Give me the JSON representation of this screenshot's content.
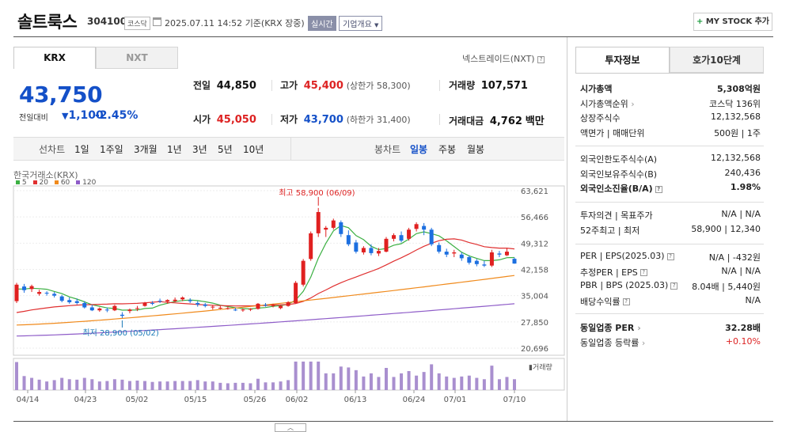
{
  "header": {
    "name": "솔트룩스",
    "code": "304100",
    "market": "코스닥",
    "datetime": "2025.07.11 14:52",
    "basis": "기준(KRX 장중)",
    "realtime": "실시간",
    "corp_info": "기업개요",
    "mystock": "MY STOCK 추가"
  },
  "market_tabs": [
    "KRX",
    "NXT"
  ],
  "nxt_link": "넥스트레이드(NXT)",
  "quote": {
    "price": "43,750",
    "change_label": "전일대비",
    "change": "1,100",
    "rate": "-2.45%",
    "prev_label": "전일",
    "prev": "44,850",
    "high_label": "고가",
    "high": "45,400",
    "upper_limit": "(상한가 58,300)",
    "volume_label": "거래량",
    "volume": "107,571",
    "open_label": "시가",
    "open": "45,050",
    "low_label": "저가",
    "low": "43,700",
    "lower_limit": "(하한가 31,400)",
    "amount_label": "거래대금",
    "amount": "4,762",
    "amount_unit": "백만"
  },
  "period_bar": {
    "line_label": "선차트",
    "line_periods": [
      "1일",
      "1주일",
      "3개월",
      "1년",
      "3년",
      "5년",
      "10년"
    ],
    "candle_label": "봉차트",
    "candle_periods": [
      "일봉",
      "주봉",
      "월봉"
    ],
    "active_candle": "일봉"
  },
  "chart_data": {
    "type": "candlestick",
    "source_label": "한국거래소(KRX)",
    "legend": [
      {
        "name": "5",
        "color": "#3cb043"
      },
      {
        "name": "20",
        "color": "#e03030"
      },
      {
        "name": "60",
        "color": "#f08a1c"
      },
      {
        "name": "120",
        "color": "#8e5cc8"
      }
    ],
    "y_ticks": [
      "63,621",
      "56,466",
      "49,312",
      "42,158",
      "35,004",
      "27,850",
      "20,696"
    ],
    "ylim": [
      20696,
      63621
    ],
    "x_labels": [
      "04/14",
      "04/23",
      "05/02",
      "05/15",
      "05/26",
      "06/02",
      "06/13",
      "06/24",
      "07/01",
      "07/10"
    ],
    "annotations": {
      "high": "최고 58,900 (06/09)",
      "low": "최저 28,900 (05/02)"
    },
    "volume_label": "거래량",
    "candles": [
      [
        33500,
        38500,
        33000,
        38000
      ],
      [
        37500,
        38200,
        35800,
        36500
      ],
      [
        36800,
        38000,
        36000,
        37600
      ],
      [
        35500,
        36600,
        35000,
        36000
      ],
      [
        35800,
        36200,
        35000,
        35600
      ],
      [
        35500,
        36000,
        34500,
        35000
      ],
      [
        34800,
        35200,
        33200,
        33600
      ],
      [
        33800,
        34500,
        32800,
        33200
      ],
      [
        33500,
        34200,
        32600,
        33000
      ],
      [
        33000,
        33500,
        31500,
        31800
      ],
      [
        31800,
        32500,
        30800,
        31000
      ],
      [
        31000,
        31800,
        30600,
        31500
      ],
      [
        31200,
        31800,
        30500,
        31000
      ],
      [
        31000,
        32500,
        30800,
        32200
      ],
      [
        29800,
        30500,
        28900,
        29500
      ],
      [
        30800,
        31500,
        30200,
        31200
      ],
      [
        31500,
        32200,
        30800,
        31600
      ],
      [
        32200,
        33300,
        32000,
        33000
      ],
      [
        33000,
        33500,
        32400,
        32800
      ],
      [
        33600,
        34200,
        33000,
        33400
      ],
      [
        33400,
        34000,
        32800,
        33800
      ],
      [
        33500,
        34500,
        33200,
        33900
      ],
      [
        34000,
        34800,
        33500,
        34500
      ],
      [
        33800,
        34300,
        33000,
        33500
      ],
      [
        33000,
        33500,
        32000,
        32600
      ],
      [
        32600,
        33000,
        31800,
        32200
      ],
      [
        31800,
        32400,
        31200,
        32000
      ],
      [
        31600,
        32200,
        31300,
        31700
      ],
      [
        31500,
        32000,
        31200,
        31600
      ],
      [
        31200,
        31700,
        30800,
        31000
      ],
      [
        31000,
        31500,
        30600,
        31200
      ],
      [
        31200,
        31600,
        30800,
        31400
      ],
      [
        31400,
        33000,
        31200,
        32800
      ],
      [
        32500,
        33000,
        32000,
        32400
      ],
      [
        32200,
        32800,
        31800,
        32600
      ],
      [
        31600,
        32500,
        31300,
        32200
      ],
      [
        32200,
        33500,
        32000,
        33200
      ],
      [
        33000,
        39000,
        32800,
        38500
      ],
      [
        38000,
        45000,
        37500,
        44500
      ],
      [
        45000,
        52500,
        44500,
        52000
      ],
      [
        52000,
        58900,
        51000,
        57800
      ],
      [
        53000,
        54000,
        51000,
        53500
      ],
      [
        53500,
        56000,
        53000,
        55500
      ],
      [
        55000,
        55500,
        51000,
        51800
      ],
      [
        51500,
        52800,
        48500,
        49000
      ],
      [
        49500,
        50200,
        46500,
        47000
      ],
      [
        46800,
        48500,
        46200,
        48000
      ],
      [
        48000,
        49000,
        46000,
        46600
      ],
      [
        46500,
        48000,
        45800,
        47200
      ],
      [
        47000,
        51000,
        46800,
        50500
      ],
      [
        50500,
        52000,
        49800,
        51500
      ],
      [
        51500,
        52500,
        49500,
        50000
      ],
      [
        50500,
        53500,
        50000,
        53000
      ],
      [
        53200,
        55000,
        52500,
        54500
      ],
      [
        54000,
        54800,
        51500,
        53000
      ],
      [
        53000,
        53500,
        48500,
        49000
      ],
      [
        48800,
        49500,
        46500,
        47000
      ],
      [
        47000,
        47800,
        45500,
        46200
      ],
      [
        46500,
        47500,
        45500,
        46800
      ],
      [
        46200,
        46800,
        44500,
        45200
      ],
      [
        45500,
        46000,
        43500,
        44000
      ],
      [
        44500,
        45000,
        43000,
        43600
      ],
      [
        43500,
        44500,
        42800,
        43200
      ],
      [
        43200,
        47500,
        42800,
        46800
      ],
      [
        46500,
        47200,
        45500,
        46200
      ],
      [
        46000,
        48000,
        45800,
        47000
      ],
      [
        45050,
        45400,
        43700,
        43750
      ]
    ]
  },
  "right_panel": {
    "tabs": [
      "투자정보",
      "호가10단계"
    ],
    "group1": [
      {
        "label": "시가총액",
        "value": "5,308억원",
        "bold": true
      },
      {
        "label": "시가총액순위",
        "value": "코스닥 136위",
        "arrow": true
      },
      {
        "label": "상장주식수",
        "value": "12,132,568"
      },
      {
        "label": "액면가 | 매매단위",
        "value": "500원 | 1주"
      }
    ],
    "group2": [
      {
        "label": "외국인한도주식수(A)",
        "value": "12,132,568"
      },
      {
        "label": "외국인보유주식수(B)",
        "value": "240,436"
      },
      {
        "label": "외국인소진율(B/A)",
        "value": "1.98%",
        "bold": true,
        "help": true
      }
    ],
    "group3": [
      {
        "label": "투자의견 | 목표주가",
        "value": "N/A | N/A"
      },
      {
        "label": "52주최고 | 최저",
        "value": "58,900 | 12,340"
      }
    ],
    "group4": [
      {
        "label": "PER | EPS(2025.03)",
        "value": "N/A | -432원",
        "help": true
      },
      {
        "label": "추정PER | EPS",
        "value": "N/A | N/A",
        "help": true
      },
      {
        "label": "PBR | BPS (2025.03)",
        "value": "8.04배 | 5,440원",
        "help": true
      },
      {
        "label": "배당수익률",
        "value": "N/A",
        "help": true
      }
    ],
    "group5": [
      {
        "label": "동일업종 PER",
        "value": "32.28배",
        "bold": true,
        "arrow": true
      },
      {
        "label": "동일업종 등락률",
        "value": "+0.10%",
        "red": true,
        "arrow": true
      }
    ]
  },
  "colors": {
    "up": "#e02020",
    "down": "#1c6fe0",
    "accent_blue": "#1450c8"
  }
}
